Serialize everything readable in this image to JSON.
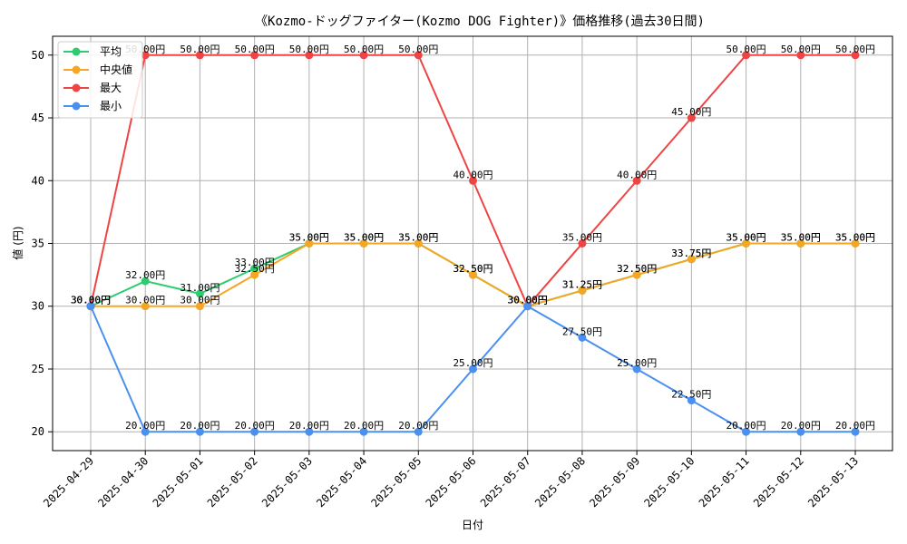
{
  "chart_data": {
    "type": "line",
    "title": "《Kozmo-ドッグファイター(Kozmo DOG Fighter)》価格推移(過去30日間)",
    "xlabel": "日付",
    "ylabel": "値 (円)",
    "ylim": [
      18.5,
      51.5
    ],
    "yticks": [
      20,
      25,
      30,
      35,
      40,
      45,
      50
    ],
    "grid": true,
    "legend_position": "top-left",
    "x": [
      "2025-04-29",
      "2025-04-30",
      "2025-05-01",
      "2025-05-02",
      "2025-05-03",
      "2025-05-04",
      "2025-05-05",
      "2025-05-06",
      "2025-05-07",
      "2025-05-08",
      "2025-05-09",
      "2025-05-10",
      "2025-05-11",
      "2025-05-12",
      "2025-05-13"
    ],
    "series": [
      {
        "name": "平均",
        "color": "#2ecc71",
        "values": [
          30,
          32,
          31,
          33,
          35,
          35,
          35,
          32.5,
          30,
          31.25,
          32.5,
          33.75,
          35,
          35,
          35
        ],
        "labels": [
          "30.00円",
          "32.00円",
          "31.00円",
          "33.00円",
          "35.00円",
          "35.00円",
          "35.00円",
          "32.50円",
          "30.00円",
          "31.25円",
          "32.50円",
          "33.75円",
          "35.00円",
          "35.00円",
          "35.00円"
        ]
      },
      {
        "name": "中央値",
        "color": "#f5a623",
        "values": [
          30,
          30,
          30,
          32.5,
          35,
          35,
          35,
          32.5,
          30,
          31.25,
          32.5,
          33.75,
          35,
          35,
          35
        ],
        "labels": [
          "30.00円",
          "30.00円",
          "30.00円",
          "32.50円",
          "35.00円",
          "35.00円",
          "35.00円",
          "32.50円",
          "30.00円",
          "31.25円",
          "32.50円",
          "33.75円",
          "35.00円",
          "35.00円",
          "35.00円"
        ]
      },
      {
        "name": "最大",
        "color": "#ef4444",
        "values": [
          30,
          50,
          50,
          50,
          50,
          50,
          50,
          40,
          30,
          35,
          40,
          45,
          50,
          50,
          50
        ],
        "labels": [
          "30.00円",
          "50.00円",
          "50.00円",
          "50.00円",
          "50.00円",
          "50.00円",
          "50.00円",
          "40.00円",
          "30.00円",
          "35.00円",
          "40.00円",
          "45.00円",
          "50.00円",
          "50.00円",
          "50.00円"
        ]
      },
      {
        "name": "最小",
        "color": "#4a90f0",
        "values": [
          30,
          20,
          20,
          20,
          20,
          20,
          20,
          25,
          30,
          27.5,
          25,
          22.5,
          20,
          20,
          20
        ],
        "labels": [
          "30.00円",
          "20.00円",
          "20.00円",
          "20.00円",
          "20.00円",
          "20.00円",
          "20.00円",
          "25.00円",
          "30.00円",
          "27.50円",
          "25.00円",
          "22.50円",
          "20.00円",
          "20.00円",
          "20.00円"
        ]
      }
    ]
  }
}
